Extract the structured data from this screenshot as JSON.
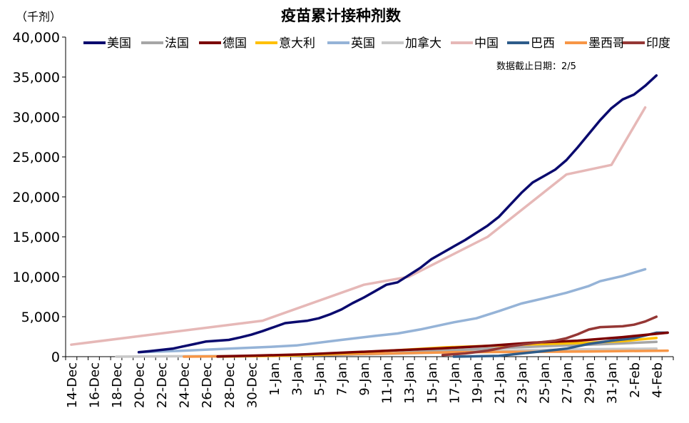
{
  "chart_data": {
    "type": "line",
    "title": "疫苗累计接种剂数",
    "unit_label": "（千剂）",
    "annotation": "数据截止日期：2/5",
    "ylim": [
      0,
      40000
    ],
    "yticks": [
      "0",
      "5,000",
      "10,000",
      "15,000",
      "20,000",
      "25,000",
      "30,000",
      "35,000",
      "40,000"
    ],
    "ytick_values": [
      0,
      5000,
      10000,
      15000,
      20000,
      25000,
      30000,
      35000,
      40000
    ],
    "x_dates": [
      "2020-12-14",
      "2020-12-15",
      "2020-12-16",
      "2020-12-17",
      "2020-12-18",
      "2020-12-19",
      "2020-12-20",
      "2020-12-21",
      "2020-12-22",
      "2020-12-23",
      "2020-12-24",
      "2020-12-25",
      "2020-12-26",
      "2020-12-27",
      "2020-12-28",
      "2020-12-29",
      "2020-12-30",
      "2020-12-31",
      "2021-01-01",
      "2021-01-02",
      "2021-01-03",
      "2021-01-04",
      "2021-01-05",
      "2021-01-06",
      "2021-01-07",
      "2021-01-08",
      "2021-01-09",
      "2021-01-10",
      "2021-01-11",
      "2021-01-12",
      "2021-01-13",
      "2021-01-14",
      "2021-01-15",
      "2021-01-16",
      "2021-01-17",
      "2021-01-18",
      "2021-01-19",
      "2021-01-20",
      "2021-01-21",
      "2021-01-22",
      "2021-01-23",
      "2021-01-24",
      "2021-01-25",
      "2021-01-26",
      "2021-01-27",
      "2021-01-28",
      "2021-01-29",
      "2021-01-30",
      "2021-01-31",
      "2021-02-01",
      "2021-02-02",
      "2021-02-03",
      "2021-02-04",
      "2021-02-05"
    ],
    "xtick_labels": [
      "14-Dec",
      "16-Dec",
      "18-Dec",
      "20-Dec",
      "22-Dec",
      "24-Dec",
      "26-Dec",
      "28-Dec",
      "30-Dec",
      "1-Jan",
      "3-Jan",
      "5-Jan",
      "7-Jan",
      "9-Jan",
      "11-Jan",
      "13-Jan",
      "15-Jan",
      "17-Jan",
      "19-Jan",
      "21-Jan",
      "23-Jan",
      "25-Jan",
      "27-Jan",
      "29-Jan",
      "31-Jan",
      "2-Feb",
      "4-Feb"
    ],
    "legend_position": "top",
    "grid": false,
    "series": [
      {
        "name": "美国",
        "color": "#0a0a6e",
        "points": [
          [
            "2020-12-20",
            550
          ],
          [
            "2020-12-21",
            700
          ],
          [
            "2020-12-22",
            850
          ],
          [
            "2020-12-23",
            1000
          ],
          [
            "2020-12-24",
            1300
          ],
          [
            "2020-12-25",
            1600
          ],
          [
            "2020-12-26",
            1900
          ],
          [
            "2020-12-27",
            2000
          ],
          [
            "2020-12-28",
            2100
          ],
          [
            "2020-12-29",
            2400
          ],
          [
            "2020-12-30",
            2750
          ],
          [
            "2020-12-31",
            3200
          ],
          [
            "2021-01-01",
            3700
          ],
          [
            "2021-01-02",
            4200
          ],
          [
            "2021-01-03",
            4350
          ],
          [
            "2021-01-04",
            4500
          ],
          [
            "2021-01-05",
            4800
          ],
          [
            "2021-01-06",
            5300
          ],
          [
            "2021-01-07",
            5900
          ],
          [
            "2021-01-08",
            6700
          ],
          [
            "2021-01-09",
            7400
          ],
          [
            "2021-01-10",
            8200
          ],
          [
            "2021-01-11",
            9000
          ],
          [
            "2021-01-12",
            9300
          ],
          [
            "2021-01-13",
            10200
          ],
          [
            "2021-01-14",
            11100
          ],
          [
            "2021-01-15",
            12200
          ],
          [
            "2021-01-16",
            13000
          ],
          [
            "2021-01-17",
            13800
          ],
          [
            "2021-01-18",
            14600
          ],
          [
            "2021-01-19",
            15500
          ],
          [
            "2021-01-20",
            16400
          ],
          [
            "2021-01-21",
            17500
          ],
          [
            "2021-01-22",
            19000
          ],
          [
            "2021-01-23",
            20500
          ],
          [
            "2021-01-24",
            21800
          ],
          [
            "2021-01-25",
            22600
          ],
          [
            "2021-01-26",
            23400
          ],
          [
            "2021-01-27",
            24600
          ],
          [
            "2021-01-28",
            26200
          ],
          [
            "2021-01-29",
            27900
          ],
          [
            "2021-01-30",
            29600
          ],
          [
            "2021-01-31",
            31100
          ],
          [
            "2021-02-01",
            32200
          ],
          [
            "2021-02-02",
            32800
          ],
          [
            "2021-02-03",
            33900
          ],
          [
            "2021-02-04",
            35200
          ]
        ]
      },
      {
        "name": "法国",
        "color": "#a6a6a6",
        "points": [
          [
            "2020-12-27",
            0
          ],
          [
            "2021-01-01",
            100
          ],
          [
            "2021-01-06",
            200
          ],
          [
            "2021-01-11",
            400
          ],
          [
            "2021-01-15",
            700
          ],
          [
            "2021-01-20",
            1000
          ],
          [
            "2021-01-25",
            1300
          ],
          [
            "2021-01-30",
            1550
          ],
          [
            "2021-02-04",
            1850
          ]
        ]
      },
      {
        "name": "德国",
        "color": "#7b0000",
        "points": [
          [
            "2020-12-27",
            20
          ],
          [
            "2020-12-31",
            150
          ],
          [
            "2021-01-04",
            300
          ],
          [
            "2021-01-08",
            550
          ],
          [
            "2021-01-12",
            800
          ],
          [
            "2021-01-16",
            1050
          ],
          [
            "2021-01-20",
            1350
          ],
          [
            "2021-01-24",
            1750
          ],
          [
            "2021-01-28",
            2000
          ],
          [
            "2021-02-01",
            2450
          ],
          [
            "2021-02-05",
            3000
          ]
        ]
      },
      {
        "name": "意大利",
        "color": "#ffc000",
        "points": [
          [
            "2020-12-27",
            10
          ],
          [
            "2020-12-31",
            100
          ],
          [
            "2021-01-04",
            200
          ],
          [
            "2021-01-08",
            500
          ],
          [
            "2021-01-12",
            800
          ],
          [
            "2021-01-16",
            1150
          ],
          [
            "2021-01-20",
            1350
          ],
          [
            "2021-01-24",
            1550
          ],
          [
            "2021-01-28",
            1700
          ],
          [
            "2021-02-01",
            1950
          ],
          [
            "2021-02-04",
            2350
          ]
        ]
      },
      {
        "name": "英国",
        "color": "#95b3d7",
        "points": [
          [
            "2020-12-20",
            550
          ],
          [
            "2020-12-24",
            750
          ],
          [
            "2020-12-28",
            1000
          ],
          [
            "2021-01-01",
            1250
          ],
          [
            "2021-01-03",
            1400
          ],
          [
            "2021-01-07",
            2100
          ],
          [
            "2021-01-10",
            2600
          ],
          [
            "2021-01-12",
            2900
          ],
          [
            "2021-01-14",
            3400
          ],
          [
            "2021-01-17",
            4300
          ],
          [
            "2021-01-19",
            4800
          ],
          [
            "2021-01-21",
            5700
          ],
          [
            "2021-01-23",
            6650
          ],
          [
            "2021-01-25",
            7300
          ],
          [
            "2021-01-27",
            8000
          ],
          [
            "2021-01-29",
            8850
          ],
          [
            "2021-01-30",
            9450
          ],
          [
            "2021-02-01",
            10100
          ],
          [
            "2021-02-03",
            10950
          ]
        ]
      },
      {
        "name": "加拿大",
        "color": "#c8c8c8",
        "points": [
          [
            "2020-12-18",
            0
          ],
          [
            "2020-12-24",
            50
          ],
          [
            "2020-12-30",
            100
          ],
          [
            "2021-01-05",
            200
          ],
          [
            "2021-01-11",
            350
          ],
          [
            "2021-01-17",
            550
          ],
          [
            "2021-01-23",
            800
          ],
          [
            "2021-01-29",
            930
          ],
          [
            "2021-02-04",
            1000
          ]
        ]
      },
      {
        "name": "中国",
        "color": "#e6b8b7",
        "points": [
          [
            "2020-12-14",
            1500
          ],
          [
            "2020-12-31",
            4500
          ],
          [
            "2021-01-09",
            9000
          ],
          [
            "2021-01-13",
            10000
          ],
          [
            "2021-01-20",
            15000
          ],
          [
            "2021-01-27",
            22800
          ],
          [
            "2021-01-31",
            24000
          ],
          [
            "2021-02-03",
            31200
          ]
        ]
      },
      {
        "name": "巴西",
        "color": "#2e5c8a",
        "points": [
          [
            "2021-01-17",
            0
          ],
          [
            "2021-01-21",
            100
          ],
          [
            "2021-01-23",
            400
          ],
          [
            "2021-01-25",
            700
          ],
          [
            "2021-01-27",
            1000
          ],
          [
            "2021-01-29",
            1600
          ],
          [
            "2021-01-31",
            2000
          ],
          [
            "2021-02-02",
            2300
          ],
          [
            "2021-02-04",
            3000
          ],
          [
            "2021-02-05",
            3000
          ]
        ]
      },
      {
        "name": "墨西哥",
        "color": "#f79646",
        "points": [
          [
            "2020-12-24",
            0
          ],
          [
            "2021-01-01",
            100
          ],
          [
            "2021-01-07",
            300
          ],
          [
            "2021-01-13",
            450
          ],
          [
            "2021-01-17",
            550
          ],
          [
            "2021-01-23",
            600
          ],
          [
            "2021-01-29",
            650
          ],
          [
            "2021-02-05",
            750
          ]
        ]
      },
      {
        "name": "印度",
        "color": "#953735",
        "points": [
          [
            "2021-01-16",
            200
          ],
          [
            "2021-01-18",
            400
          ],
          [
            "2021-01-20",
            750
          ],
          [
            "2021-01-22",
            1300
          ],
          [
            "2021-01-24",
            1700
          ],
          [
            "2021-01-26",
            2000
          ],
          [
            "2021-01-27",
            2300
          ],
          [
            "2021-01-28",
            2800
          ],
          [
            "2021-01-29",
            3400
          ],
          [
            "2021-01-30",
            3700
          ],
          [
            "2021-01-31",
            3750
          ],
          [
            "2021-02-01",
            3800
          ],
          [
            "2021-02-02",
            4000
          ],
          [
            "2021-02-03",
            4400
          ],
          [
            "2021-02-04",
            5000
          ]
        ]
      }
    ]
  }
}
